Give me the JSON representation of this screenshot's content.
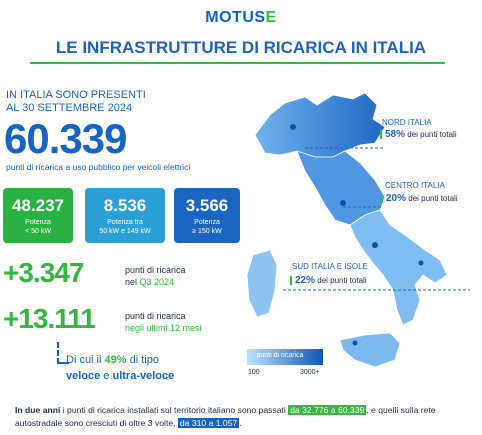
{
  "header": {
    "logo_text": "MOTUS",
    "logo_suffix": "E",
    "title": "LE INFRASTRUTTURE DI RICARICA IN ITALIA"
  },
  "intro": {
    "line1": "IN ITALIA SONO PRESENTI",
    "line2": "AL 30 SETTEMBRE 2024",
    "total": "60.339",
    "subtitle": "punti di ricarica a uso pubblico per veicoli elettrici"
  },
  "power_boxes": [
    {
      "value": "48.237",
      "label1": "Potenza",
      "label2": "< 50 kW",
      "color": "#29b142"
    },
    {
      "value": "8.536",
      "label1": "Potenza tra",
      "label2": "50 kW e 149 kW",
      "color": "#2a9fd6"
    },
    {
      "value": "3.566",
      "label1": "Potenza",
      "label2": "≥ 150 kW",
      "color": "#1a65c0"
    }
  ],
  "growth": [
    {
      "value": "+3.347",
      "line1": "punti di ricarica",
      "line2_prefix": "nel ",
      "line2_highlight": "Q3 2024"
    },
    {
      "value": "+13.111",
      "line1": "punti di ricarica",
      "line2_prefix": "",
      "line2_highlight": "negli ultimi 12 mesi"
    }
  ],
  "fast_note": {
    "prefix": "Di cui il ",
    "pct": "49%",
    "suffix": " di tipo",
    "line2_a": "veloce",
    "line2_mid": " e ",
    "line2_b": "ultra-veloce"
  },
  "regions": [
    {
      "name": "NORD ITALIA",
      "pct": "58%",
      "text": " dei punti totali"
    },
    {
      "name": "CENTRO ITALIA",
      "pct": "20%",
      "text": " dei punti totali"
    },
    {
      "name": "SUD ITALIA E ISOLE",
      "pct": "22%",
      "text": " dei punti totali"
    }
  ],
  "legend": {
    "label": "punti di ricarica",
    "min": "100",
    "max": "3000+"
  },
  "footer": {
    "bold_start": "In due anni",
    "t1": " i punti di ricarica installati sul territorio italiano sono passati ",
    "hl1": "da 32.776 a 60.339",
    "t2": ", e quelli sulla rete autostradale sono cresciuti di oltre 3 volte, ",
    "hl2": "da 310 a 1.057",
    "t3": "."
  },
  "colors": {
    "brand_blue": "#1763c1",
    "accent_green": "#34b73e"
  }
}
